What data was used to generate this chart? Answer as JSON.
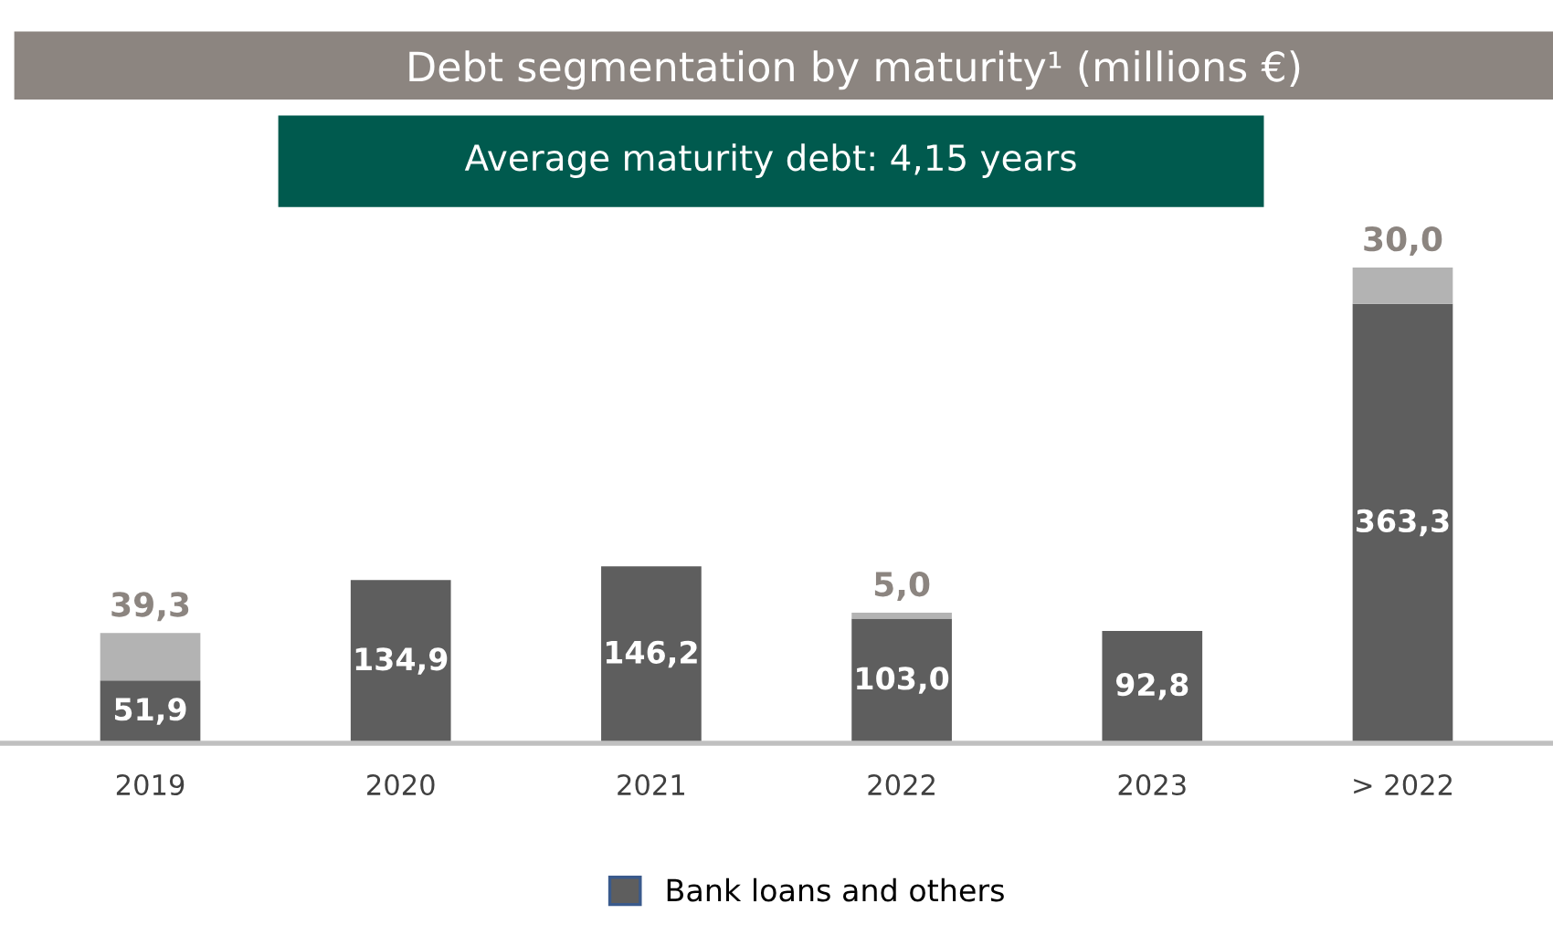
{
  "chart_data": {
    "type": "bar",
    "stacked": true,
    "title": "Debt segmentation by maturity¹ (millions €)",
    "subtitle": "Average maturity debt: 4,15 years",
    "categories": [
      "2019",
      "2020",
      "2021",
      "2022",
      "2023",
      "> 2022"
    ],
    "series": [
      {
        "name": "Bank loans and others",
        "color": "#5e5e5e",
        "values": [
          51.9,
          134.9,
          146.2,
          103.0,
          92.8,
          363.3
        ],
        "value_labels": [
          "51,9",
          "134,9",
          "146,2",
          "103,0",
          "92,8",
          "363,3"
        ]
      },
      {
        "color": "#b3b3b3",
        "values": [
          39.3,
          null,
          null,
          5.0,
          null,
          30.0
        ],
        "value_labels": [
          "39,3",
          null,
          null,
          "5,0",
          null,
          "30,0"
        ]
      }
    ],
    "legend": "bottom",
    "grid": false
  }
}
